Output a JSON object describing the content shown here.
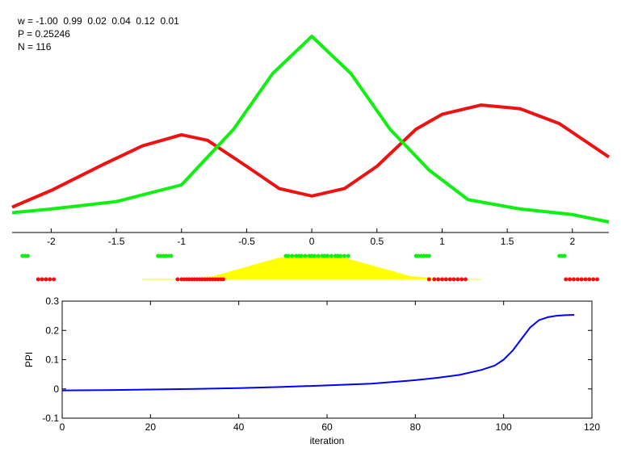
{
  "info": {
    "w_line": "w = -1.00  0.99  0.02  0.04  0.12  0.01",
    "p_line": "P = 0.25246",
    "n_line": "N = 116"
  },
  "colors": {
    "red": "#ee1111",
    "green": "#11ee11",
    "yellow": "#ffff00",
    "blue": "#0000ff",
    "axis": "#000000"
  },
  "chart_data": [
    {
      "type": "line",
      "title": "",
      "xlabel": "",
      "ylabel": "",
      "xlim": [
        -2.3,
        2.28
      ],
      "ylim": [
        0,
        1
      ],
      "xticks": [
        -2,
        -1.5,
        -1,
        -0.5,
        0,
        0.5,
        1,
        1.5,
        2
      ],
      "xtick_labels": [
        "-2",
        "-1.5",
        "-1",
        "-0.5",
        "0",
        "0.5",
        "1",
        "1.5",
        "2"
      ],
      "series": [
        {
          "color": "red",
          "x": [
            -2.3,
            -2.0,
            -1.6,
            -1.3,
            -1.0,
            -0.8,
            -0.5,
            -0.25,
            0.0,
            0.25,
            0.5,
            0.8,
            1.0,
            1.3,
            1.6,
            1.9,
            2.28
          ],
          "y": [
            0.08,
            0.17,
            0.31,
            0.41,
            0.47,
            0.44,
            0.3,
            0.18,
            0.14,
            0.18,
            0.3,
            0.5,
            0.58,
            0.63,
            0.61,
            0.53,
            0.35
          ]
        },
        {
          "color": "green",
          "x": [
            -2.3,
            -2.0,
            -1.5,
            -1.0,
            -0.6,
            -0.3,
            0.0,
            0.3,
            0.6,
            0.9,
            1.2,
            1.6,
            2.0,
            2.28
          ],
          "y": [
            0.05,
            0.07,
            0.11,
            0.2,
            0.5,
            0.8,
            1.0,
            0.8,
            0.5,
            0.28,
            0.12,
            0.07,
            0.04,
            0.0
          ]
        }
      ],
      "scatter_points": {
        "green": [
          -2.22,
          -2.2,
          -2.18,
          -1.18,
          -1.16,
          -1.14,
          -1.12,
          -1.1,
          -1.08,
          -0.2,
          -0.18,
          -0.15,
          -0.12,
          -0.1,
          -0.08,
          -0.05,
          -0.02,
          0.0,
          0.02,
          0.05,
          0.08,
          0.1,
          0.12,
          0.15,
          0.18,
          0.2,
          0.22,
          0.25,
          0.28,
          0.8,
          0.82,
          0.84,
          0.86,
          0.88,
          0.9,
          1.9,
          1.92,
          1.94
        ],
        "red": [
          -2.1,
          -2.07,
          -2.04,
          -2.01,
          -1.98,
          -1.03,
          -1.0,
          -0.98,
          -0.96,
          -0.94,
          -0.92,
          -0.9,
          -0.88,
          -0.86,
          -0.84,
          -0.82,
          -0.8,
          -0.78,
          -0.76,
          -0.74,
          -0.72,
          -0.7,
          -0.68,
          0.9,
          0.94,
          0.97,
          1.0,
          1.03,
          1.06,
          1.09,
          1.12,
          1.15,
          1.18,
          1.95,
          1.98,
          2.01,
          2.04,
          2.07,
          2.1,
          2.13,
          2.16,
          2.19
        ]
      },
      "shaded_area": {
        "color": "yellow",
        "x": [
          -1.3,
          -1.0,
          -0.75,
          -0.5,
          -0.25,
          0.0,
          0.25,
          0.5,
          0.75,
          1.0,
          1.3
        ],
        "y": [
          0.0,
          0.0,
          0.12,
          0.5,
          0.88,
          1.0,
          0.88,
          0.5,
          0.12,
          0.0,
          0.0
        ]
      }
    },
    {
      "type": "line",
      "title": "",
      "xlabel": "iteration",
      "ylabel": "PPI",
      "xlim": [
        0,
        120
      ],
      "ylim": [
        -0.1,
        0.3
      ],
      "xticks": [
        0,
        20,
        40,
        60,
        80,
        100,
        120
      ],
      "xtick_labels": [
        "0",
        "20",
        "40",
        "60",
        "80",
        "100",
        "120"
      ],
      "yticks": [
        -0.1,
        0,
        0.1,
        0.2,
        0.3
      ],
      "ytick_labels": [
        "-0.1",
        "0",
        "0.1",
        "0.2",
        "0.3"
      ],
      "series": [
        {
          "color": "blue",
          "x": [
            0,
            10,
            20,
            30,
            40,
            50,
            60,
            70,
            80,
            85,
            90,
            95,
            98,
            100,
            102,
            104,
            106,
            108,
            110,
            112,
            114,
            116
          ],
          "y": [
            -0.005,
            -0.004,
            -0.002,
            0.0,
            0.003,
            0.007,
            0.012,
            0.018,
            0.03,
            0.038,
            0.048,
            0.065,
            0.08,
            0.1,
            0.13,
            0.17,
            0.21,
            0.235,
            0.245,
            0.25,
            0.252,
            0.253
          ]
        }
      ]
    }
  ]
}
